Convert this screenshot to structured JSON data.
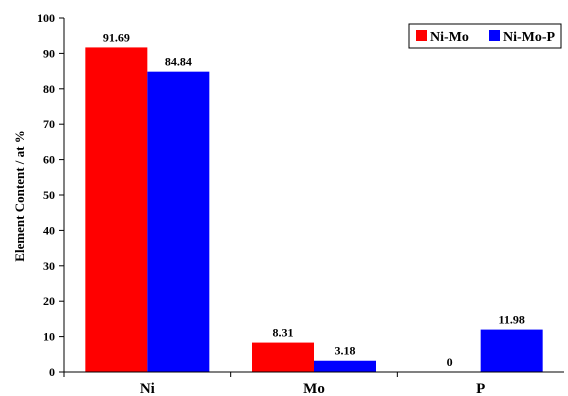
{
  "chart_data": {
    "type": "bar",
    "categories": [
      "Ni",
      "Mo",
      "P"
    ],
    "series": [
      {
        "name": "Ni-Mo",
        "values": [
          91.69,
          8.31,
          0
        ],
        "labels": [
          "91.69",
          "8.31",
          "0"
        ],
        "color": "#ff0000"
      },
      {
        "name": "Ni-Mo-P",
        "values": [
          84.84,
          3.18,
          11.98
        ],
        "labels": [
          "84.84",
          "3.18",
          "11.98"
        ],
        "color": "#0000ff"
      }
    ],
    "ylabel": "Element Content / at %",
    "xlabel": "",
    "ylim": [
      0,
      100
    ],
    "yticks": [
      "0",
      "10",
      "20",
      "30",
      "40",
      "50",
      "60",
      "70",
      "80",
      "90",
      "100"
    ],
    "grid": false,
    "legend_position": "top-right"
  }
}
